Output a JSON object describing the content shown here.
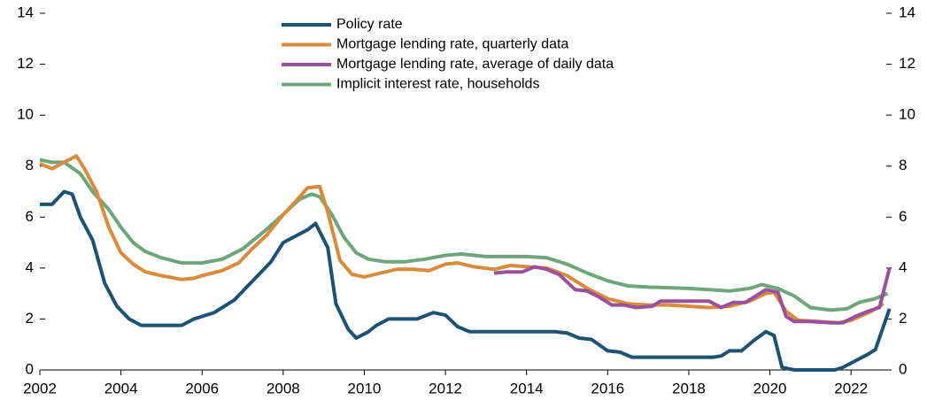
{
  "chart_data": {
    "type": "line",
    "xlim": [
      2002,
      2023
    ],
    "xticks": [
      2002,
      2004,
      2006,
      2008,
      2010,
      2012,
      2014,
      2016,
      2018,
      2020,
      2022
    ],
    "ylim": [
      0,
      14
    ],
    "yticks": [
      0,
      2,
      4,
      6,
      8,
      10,
      12,
      14
    ],
    "y2lim": [
      0,
      14
    ],
    "y2ticks": [
      0,
      2,
      4,
      6,
      8,
      10,
      12,
      14
    ],
    "legend": "top-center",
    "series": [
      {
        "name": "Implicit interest rate, households",
        "color": "#6fa57c",
        "x": [
          2002.0,
          2002.3,
          2002.6,
          2003.0,
          2003.3,
          2003.7,
          2004.0,
          2004.3,
          2004.6,
          2005.0,
          2005.5,
          2006.0,
          2006.5,
          2007.0,
          2007.5,
          2008.0,
          2008.4,
          2008.7,
          2008.9,
          2009.2,
          2009.5,
          2009.8,
          2010.1,
          2010.5,
          2011.0,
          2011.5,
          2012.0,
          2012.4,
          2013.0,
          2014.0,
          2014.5,
          2015.0,
          2015.5,
          2016.0,
          2016.5,
          2017.0,
          2018.0,
          2018.5,
          2019.0,
          2019.5,
          2019.8,
          2020.2,
          2020.6,
          2021.0,
          2021.5,
          2021.9,
          2022.2,
          2022.6,
          2022.9
        ],
        "values": [
          8.25,
          8.15,
          8.15,
          7.7,
          7.0,
          6.3,
          5.6,
          5.0,
          4.65,
          4.4,
          4.2,
          4.2,
          4.35,
          4.75,
          5.4,
          6.1,
          6.7,
          6.9,
          6.8,
          6.1,
          5.2,
          4.6,
          4.35,
          4.25,
          4.25,
          4.35,
          4.5,
          4.55,
          4.45,
          4.45,
          4.4,
          4.15,
          3.8,
          3.5,
          3.3,
          3.25,
          3.2,
          3.15,
          3.1,
          3.2,
          3.35,
          3.2,
          2.9,
          2.45,
          2.35,
          2.4,
          2.65,
          2.8,
          3.0
        ]
      },
      {
        "name": "Mortgage lending rate, quarterly data",
        "color": "#d98b3c",
        "x": [
          2002.0,
          2002.3,
          2002.6,
          2002.9,
          2003.1,
          2003.4,
          2003.7,
          2004.0,
          2004.3,
          2004.6,
          2005.0,
          2005.5,
          2005.8,
          2006.0,
          2006.5,
          2006.9,
          2007.2,
          2007.6,
          2008.0,
          2008.3,
          2008.6,
          2008.9,
          2009.1,
          2009.4,
          2009.7,
          2010.0,
          2010.4,
          2010.8,
          2011.2,
          2011.6,
          2012.0,
          2012.3,
          2012.7,
          2013.2,
          2013.6,
          2014.0,
          2014.5,
          2015.0,
          2015.5,
          2016.0,
          2016.5,
          2017.0,
          2017.5,
          2018.0,
          2018.5,
          2019.0,
          2019.5,
          2019.9,
          2020.1,
          2020.4,
          2020.7,
          2021.2,
          2021.7,
          2022.0,
          2022.5,
          2022.8
        ],
        "values": [
          8.1,
          7.9,
          8.15,
          8.4,
          7.9,
          7.0,
          5.6,
          4.6,
          4.15,
          3.85,
          3.7,
          3.55,
          3.6,
          3.7,
          3.9,
          4.2,
          4.7,
          5.3,
          6.1,
          6.6,
          7.15,
          7.2,
          6.2,
          4.3,
          3.75,
          3.65,
          3.8,
          3.95,
          3.95,
          3.9,
          4.15,
          4.2,
          4.05,
          3.95,
          4.1,
          4.05,
          4.0,
          3.7,
          3.2,
          2.8,
          2.6,
          2.55,
          2.55,
          2.5,
          2.45,
          2.5,
          2.7,
          3.0,
          3.05,
          2.3,
          1.95,
          1.9,
          1.85,
          1.95,
          2.3,
          2.6
        ]
      },
      {
        "name": "Mortgage lending rate, average of daily data",
        "color": "#9a519c",
        "x": [
          2013.2,
          2013.5,
          2013.9,
          2014.2,
          2014.5,
          2014.8,
          2015.2,
          2015.5,
          2015.8,
          2016.1,
          2016.4,
          2016.7,
          2017.1,
          2017.3,
          2018.2,
          2018.5,
          2018.8,
          2019.1,
          2019.4,
          2019.7,
          2019.9,
          2020.2,
          2020.4,
          2020.6,
          2021.0,
          2021.5,
          2021.8,
          2022.1,
          2022.5,
          2022.7,
          2022.95
        ],
        "values": [
          3.8,
          3.85,
          3.85,
          4.05,
          3.95,
          3.75,
          3.15,
          3.1,
          2.85,
          2.55,
          2.55,
          2.45,
          2.5,
          2.7,
          2.7,
          2.7,
          2.45,
          2.65,
          2.65,
          2.95,
          3.15,
          3.05,
          2.1,
          1.9,
          1.9,
          1.85,
          1.85,
          2.1,
          2.35,
          2.45,
          4.0
        ]
      },
      {
        "name": "Policy rate",
        "color": "#1d5272",
        "x": [
          2002.0,
          2002.3,
          2002.6,
          2002.8,
          2003.0,
          2003.3,
          2003.6,
          2003.9,
          2004.2,
          2004.5,
          2005.0,
          2005.5,
          2005.8,
          2006.3,
          2006.8,
          2007.1,
          2007.4,
          2007.7,
          2008.0,
          2008.3,
          2008.6,
          2008.8,
          2009.1,
          2009.3,
          2009.6,
          2009.8,
          2010.1,
          2010.3,
          2010.6,
          2011.3,
          2011.7,
          2012.0,
          2012.3,
          2012.6,
          2014.7,
          2015.0,
          2015.3,
          2015.6,
          2016.0,
          2016.3,
          2016.6,
          2018.6,
          2018.8,
          2019.0,
          2019.3,
          2019.6,
          2019.9,
          2020.1,
          2020.3,
          2020.6,
          2021.6,
          2021.8,
          2022.1,
          2022.4,
          2022.6,
          2022.95
        ],
        "values": [
          6.5,
          6.5,
          7.0,
          6.9,
          6.0,
          5.1,
          3.4,
          2.5,
          2.0,
          1.75,
          1.75,
          1.75,
          2.0,
          2.25,
          2.75,
          3.25,
          3.75,
          4.25,
          5.0,
          5.25,
          5.5,
          5.75,
          4.8,
          2.6,
          1.6,
          1.25,
          1.5,
          1.75,
          2.0,
          2.0,
          2.25,
          2.15,
          1.7,
          1.5,
          1.5,
          1.45,
          1.25,
          1.2,
          0.75,
          0.7,
          0.5,
          0.5,
          0.55,
          0.75,
          0.75,
          1.15,
          1.5,
          1.35,
          0.1,
          0.0,
          0.0,
          0.1,
          0.35,
          0.6,
          0.8,
          2.4
        ]
      }
    ],
    "legend_order": [
      "Policy rate",
      "Mortgage lending rate, quarterly data",
      "Mortgage lending rate, average of daily data",
      "Implicit interest rate, households"
    ]
  }
}
